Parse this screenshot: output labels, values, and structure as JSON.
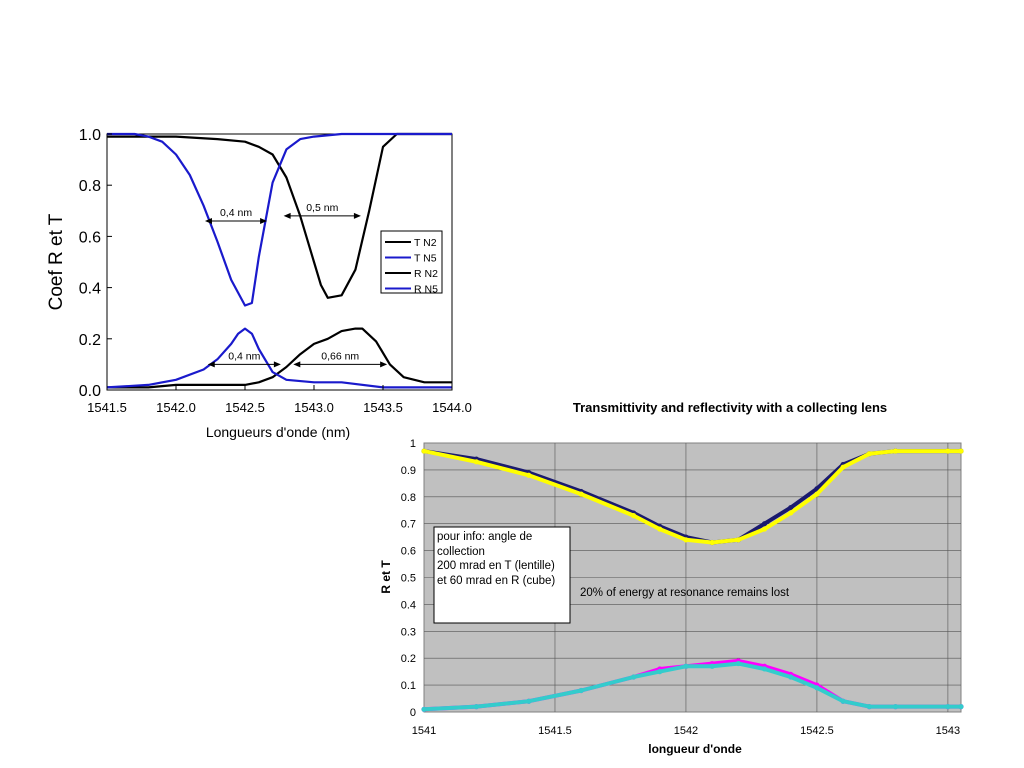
{
  "chart_data": [
    {
      "type": "line",
      "title": "",
      "xlabel": "Longueurs d'onde (nm)",
      "ylabel": "Coef R et T",
      "xlim": [
        1541.5,
        1544.0
      ],
      "ylim": [
        0.0,
        1.0
      ],
      "x_ticks": [
        "1541.5",
        "1542.0",
        "1542.5",
        "1543.0",
        "1543.5",
        "1544.0"
      ],
      "x_tick_values": [
        1541.5,
        1542.0,
        1542.5,
        1543.0,
        1543.5,
        1544.0
      ],
      "y_ticks": [
        "0.0",
        "0.2",
        "0.4",
        "0.6",
        "0.8",
        "1.0"
      ],
      "y_tick_values": [
        0.0,
        0.2,
        0.4,
        0.6,
        0.8,
        1.0
      ],
      "grid": false,
      "legend_position": "right",
      "series": [
        {
          "name": "T N2",
          "color": "#000000",
          "x": [
            1541.5,
            1541.8,
            1542.0,
            1542.3,
            1542.5,
            1542.6,
            1542.7,
            1542.8,
            1542.9,
            1543.0,
            1543.05,
            1543.1,
            1543.2,
            1543.3,
            1543.4,
            1543.5,
            1543.6,
            1543.8,
            1544.0
          ],
          "y": [
            0.99,
            0.99,
            0.99,
            0.98,
            0.97,
            0.95,
            0.92,
            0.83,
            0.68,
            0.5,
            0.41,
            0.36,
            0.37,
            0.47,
            0.7,
            0.95,
            1.0,
            1.0,
            1.0
          ]
        },
        {
          "name": "T N5",
          "color": "#1a1acc",
          "x": [
            1541.5,
            1541.7,
            1541.8,
            1541.9,
            1542.0,
            1542.1,
            1542.2,
            1542.3,
            1542.4,
            1542.5,
            1542.55,
            1542.6,
            1542.7,
            1542.8,
            1542.9,
            1543.0,
            1543.2,
            1543.5,
            1544.0
          ],
          "y": [
            1.0,
            1.0,
            0.99,
            0.97,
            0.92,
            0.84,
            0.72,
            0.58,
            0.43,
            0.33,
            0.34,
            0.52,
            0.81,
            0.94,
            0.98,
            0.99,
            1.0,
            1.0,
            1.0
          ]
        },
        {
          "name": "R N2",
          "color": "#000000",
          "x": [
            1541.5,
            1541.8,
            1542.0,
            1542.3,
            1542.5,
            1542.6,
            1542.7,
            1542.8,
            1542.9,
            1543.0,
            1543.1,
            1543.2,
            1543.3,
            1543.35,
            1543.45,
            1543.55,
            1543.65,
            1543.8,
            1544.0
          ],
          "y": [
            0.01,
            0.01,
            0.02,
            0.02,
            0.02,
            0.03,
            0.05,
            0.09,
            0.14,
            0.18,
            0.2,
            0.23,
            0.24,
            0.24,
            0.19,
            0.1,
            0.05,
            0.03,
            0.03
          ]
        },
        {
          "name": "R N5",
          "color": "#1a1acc",
          "x": [
            1541.5,
            1541.8,
            1542.0,
            1542.2,
            1542.3,
            1542.4,
            1542.45,
            1542.5,
            1542.55,
            1542.6,
            1542.7,
            1542.8,
            1543.0,
            1543.2,
            1543.5,
            1544.0
          ],
          "y": [
            0.01,
            0.02,
            0.04,
            0.08,
            0.12,
            0.18,
            0.22,
            0.24,
            0.22,
            0.16,
            0.07,
            0.04,
            0.03,
            0.03,
            0.01,
            0.01
          ]
        }
      ],
      "annotations": [
        {
          "text": "0,4 nm",
          "x_from": 1542.21,
          "x_to": 1542.66,
          "y": 0.66
        },
        {
          "text": "0,5 nm",
          "x_from": 1542.78,
          "x_to": 1543.34,
          "y": 0.68
        },
        {
          "text": "0,4 nm",
          "x_from": 1542.23,
          "x_to": 1542.76,
          "y": 0.1
        },
        {
          "text": "0,66 nm",
          "x_from": 1542.85,
          "x_to": 1543.53,
          "y": 0.1
        }
      ]
    },
    {
      "type": "scatter",
      "title": "Transmittivity and reflectivity with a collecting lens",
      "xlabel": "longueur d'onde",
      "ylabel": "R et T",
      "xlim": [
        1541.0,
        1543.05
      ],
      "ylim": [
        0.0,
        1.0
      ],
      "x_ticks": [
        "1541",
        "1541.5",
        "1542",
        "1542.5",
        "1543"
      ],
      "x_tick_values": [
        1541.0,
        1541.5,
        1542.0,
        1542.5,
        1543.0
      ],
      "y_ticks": [
        "0",
        "0.1",
        "0.2",
        "0.3",
        "0.4",
        "0.5",
        "0.6",
        "0.7",
        "0.8",
        "0.9",
        "1"
      ],
      "y_tick_values": [
        0,
        0.1,
        0.2,
        0.3,
        0.4,
        0.5,
        0.6,
        0.7,
        0.8,
        0.9,
        1.0
      ],
      "grid": true,
      "background": "#c0c0c0",
      "series": [
        {
          "color": "#1a1a6e",
          "x": [
            1541.0,
            1541.2,
            1541.4,
            1541.6,
            1541.8,
            1541.9,
            1542.0,
            1542.1,
            1542.2,
            1542.3,
            1542.4,
            1542.5,
            1542.6,
            1542.7,
            1542.8,
            1543.0,
            1543.05
          ],
          "y": [
            0.97,
            0.94,
            0.89,
            0.82,
            0.74,
            0.69,
            0.65,
            0.63,
            0.64,
            0.7,
            0.76,
            0.83,
            0.92,
            0.96,
            0.97,
            0.97,
            0.97
          ]
        },
        {
          "color": "#ffff00",
          "x": [
            1541.0,
            1541.2,
            1541.4,
            1541.6,
            1541.8,
            1541.9,
            1542.0,
            1542.1,
            1542.2,
            1542.3,
            1542.4,
            1542.5,
            1542.6,
            1542.7,
            1542.8,
            1543.0,
            1543.05
          ],
          "y": [
            0.97,
            0.93,
            0.88,
            0.81,
            0.73,
            0.68,
            0.64,
            0.63,
            0.64,
            0.68,
            0.74,
            0.81,
            0.91,
            0.96,
            0.97,
            0.97,
            0.97
          ]
        },
        {
          "color": "#ff00ff",
          "x": [
            1541.0,
            1541.2,
            1541.4,
            1541.6,
            1541.8,
            1541.9,
            1542.0,
            1542.1,
            1542.2,
            1542.3,
            1542.4,
            1542.5,
            1542.6,
            1542.7,
            1542.8,
            1543.0,
            1543.05
          ],
          "y": [
            0.01,
            0.02,
            0.04,
            0.08,
            0.13,
            0.16,
            0.17,
            0.18,
            0.19,
            0.17,
            0.14,
            0.1,
            0.04,
            0.02,
            0.02,
            0.02,
            0.02
          ]
        },
        {
          "color": "#33cccc",
          "x": [
            1541.0,
            1541.2,
            1541.4,
            1541.6,
            1541.8,
            1541.9,
            1542.0,
            1542.1,
            1542.2,
            1542.3,
            1542.4,
            1542.5,
            1542.6,
            1542.7,
            1542.8,
            1543.0,
            1543.05
          ],
          "y": [
            0.01,
            0.02,
            0.04,
            0.08,
            0.13,
            0.15,
            0.17,
            0.17,
            0.18,
            0.16,
            0.13,
            0.09,
            0.04,
            0.02,
            0.02,
            0.02,
            0.02
          ]
        }
      ],
      "info_box": [
        "pour info: angle de",
        "collection",
        "200 mrad en T  (lentille)",
        "et 60 mrad en R (cube)"
      ],
      "note": "20% of energy at resonance remains lost"
    }
  ]
}
